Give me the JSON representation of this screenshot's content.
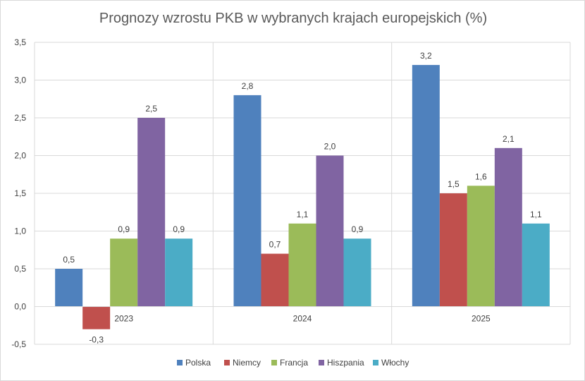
{
  "chart_data": {
    "type": "bar",
    "title": "Prognozy wzrostu PKB w wybranych krajach europejskich (%)",
    "categories": [
      "2023",
      "2024",
      "2025"
    ],
    "series": [
      {
        "name": "Polska",
        "color": "#4f81bd",
        "values": [
          0.5,
          2.8,
          3.2
        ],
        "labels": [
          "0,5",
          "2,8",
          "3,2"
        ]
      },
      {
        "name": "Niemcy",
        "color": "#c0504d",
        "values": [
          -0.3,
          0.7,
          1.5
        ],
        "labels": [
          "-0,3",
          "0,7",
          "1,5"
        ]
      },
      {
        "name": "Francja",
        "color": "#9bbb59",
        "values": [
          0.9,
          1.1,
          1.6
        ],
        "labels": [
          "0,9",
          "1,1",
          "1,6"
        ]
      },
      {
        "name": "Hiszpania",
        "color": "#8064a2",
        "values": [
          2.5,
          2.0,
          2.1
        ],
        "labels": [
          "2,5",
          "2,0",
          "2,1"
        ]
      },
      {
        "name": "Włochy",
        "color": "#4bacc6",
        "values": [
          0.9,
          0.9,
          1.1
        ],
        "labels": [
          "0,9",
          "0,9",
          "1,1"
        ]
      }
    ],
    "yticks": [
      -0.5,
      0.0,
      0.5,
      1.0,
      1.5,
      2.0,
      2.5,
      3.0,
      3.5
    ],
    "ytick_labels": [
      "-0,5",
      "0,0",
      "0,5",
      "1,0",
      "1,5",
      "2,0",
      "2,5",
      "3,0",
      "3,5"
    ],
    "ylim": [
      -0.5,
      3.5
    ],
    "xlabel": "",
    "ylabel": "",
    "grid": true,
    "legend_position": "bottom"
  }
}
